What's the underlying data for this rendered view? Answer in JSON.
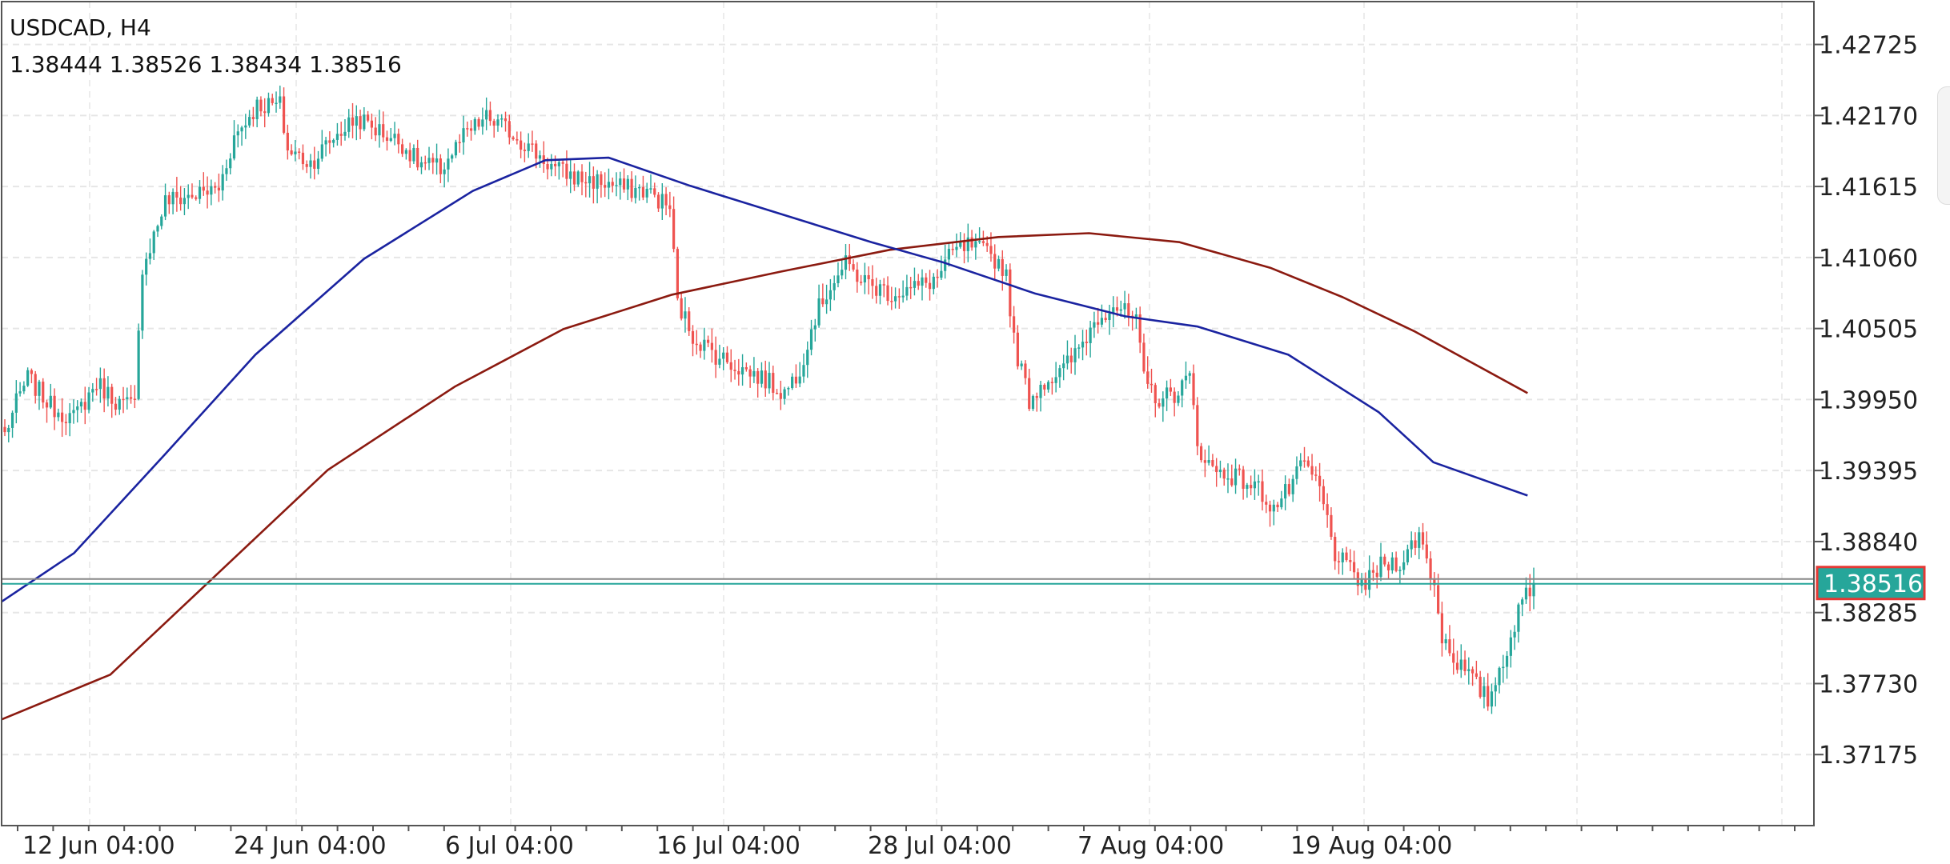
{
  "header": {
    "title": "USDCAD, H4",
    "ohlc": "1.38444 1.38526 1.38434 1.38516"
  },
  "chart_data": {
    "type": "candlestick",
    "symbol": "USDCAD",
    "timeframe": "H4",
    "y_ticks": [
      "1.42725",
      "1.42170",
      "1.41615",
      "1.41060",
      "1.40505",
      "1.39950",
      "1.39395",
      "1.38840",
      "1.38285",
      "1.37730",
      "1.37175"
    ],
    "x_ticks": [
      "12 Jun 04:00",
      "24 Jun 04:00",
      "6 Jul 04:00",
      "16 Jul 04:00",
      "28 Jul 04:00",
      "7 Aug 04:00",
      "19 Aug 04:00"
    ],
    "ylim": [
      1.3662,
      1.4306
    ],
    "last_price": 1.38516,
    "last_price_label": "1.38516",
    "grid": true,
    "colors": {
      "bull": "#26a69a",
      "bear": "#ef5350",
      "ma_fast": "#1a23a0",
      "ma_slow": "#8b1a10",
      "price_line": "#26a69a",
      "label_bg": "#26a69a",
      "label_border": "#e53935"
    },
    "close_path": [
      [
        0,
        1.3968
      ],
      [
        3,
        1.3992
      ],
      [
        6,
        1.4012
      ],
      [
        12,
        1.399
      ],
      [
        18,
        1.398
      ],
      [
        24,
        1.4008
      ],
      [
        30,
        1.3992
      ],
      [
        34,
        1.399
      ],
      [
        36,
        1.41
      ],
      [
        38,
        1.4115
      ],
      [
        42,
        1.415
      ],
      [
        50,
        1.4155
      ],
      [
        56,
        1.416
      ],
      [
        60,
        1.42
      ],
      [
        66,
        1.4225
      ],
      [
        72,
        1.4225
      ],
      [
        74,
        1.419
      ],
      [
        80,
        1.418
      ],
      [
        86,
        1.42
      ],
      [
        92,
        1.4215
      ],
      [
        98,
        1.4205
      ],
      [
        104,
        1.4195
      ],
      [
        108,
        1.418
      ],
      [
        114,
        1.4175
      ],
      [
        120,
        1.42
      ],
      [
        126,
        1.4215
      ],
      [
        132,
        1.4205
      ],
      [
        138,
        1.419
      ],
      [
        144,
        1.4175
      ],
      [
        150,
        1.4168
      ],
      [
        156,
        1.4165
      ],
      [
        162,
        1.416
      ],
      [
        168,
        1.4158
      ],
      [
        174,
        1.4145
      ],
      [
        176,
        1.407
      ],
      [
        180,
        1.4045
      ],
      [
        186,
        1.403
      ],
      [
        192,
        1.402
      ],
      [
        198,
        1.4012
      ],
      [
        204,
        1.4
      ],
      [
        208,
        1.402
      ],
      [
        212,
        1.406
      ],
      [
        216,
        1.4085
      ],
      [
        220,
        1.41
      ],
      [
        226,
        1.4085
      ],
      [
        232,
        1.4078
      ],
      [
        238,
        1.4082
      ],
      [
        244,
        1.409
      ],
      [
        248,
        1.411
      ],
      [
        252,
        1.4115
      ],
      [
        258,
        1.4108
      ],
      [
        262,
        1.4095
      ],
      [
        264,
        1.404
      ],
      [
        268,
        1.3995
      ],
      [
        272,
        1.401
      ],
      [
        276,
        1.4015
      ],
      [
        280,
        1.403
      ],
      [
        286,
        1.406
      ],
      [
        290,
        1.407
      ],
      [
        296,
        1.4055
      ],
      [
        298,
        1.401
      ],
      [
        302,
        1.3995
      ],
      [
        306,
        1.4
      ],
      [
        310,
        1.4012
      ],
      [
        312,
        1.396
      ],
      [
        316,
        1.394
      ],
      [
        322,
        1.3935
      ],
      [
        328,
        1.3925
      ],
      [
        332,
        1.391
      ],
      [
        336,
        1.3925
      ],
      [
        340,
        1.3945
      ],
      [
        344,
        1.3925
      ],
      [
        348,
        1.3875
      ],
      [
        352,
        1.386
      ],
      [
        356,
        1.385
      ],
      [
        360,
        1.3865
      ],
      [
        366,
        1.387
      ],
      [
        370,
        1.389
      ],
      [
        372,
        1.387
      ],
      [
        374,
        1.385
      ],
      [
        376,
        1.381
      ],
      [
        380,
        1.379
      ],
      [
        384,
        1.3775
      ],
      [
        388,
        1.376
      ],
      [
        390,
        1.3775
      ],
      [
        394,
        1.381
      ],
      [
        398,
        1.3845
      ],
      [
        400,
        1.38516
      ]
    ],
    "ma_fast": [
      [
        1.3837,
        0
      ],
      [
        1.3875,
        0.04
      ],
      [
        1.3952,
        0.09
      ],
      [
        1.403,
        0.14
      ],
      [
        1.4105,
        0.2
      ],
      [
        1.4158,
        0.26
      ],
      [
        1.4182,
        0.3
      ],
      [
        1.4184,
        0.335
      ],
      [
        1.4162,
        0.38
      ],
      [
        1.414,
        0.43
      ],
      [
        1.4118,
        0.48
      ],
      [
        1.4102,
        0.52
      ],
      [
        1.4078,
        0.57
      ],
      [
        1.406,
        0.62
      ],
      [
        1.4052,
        0.66
      ],
      [
        1.403,
        0.71
      ],
      [
        1.3985,
        0.76
      ],
      [
        1.3946,
        0.79
      ],
      [
        1.392,
        0.842
      ]
    ],
    "ma_slow": [
      [
        1.3745,
        0
      ],
      [
        1.378,
        0.06
      ],
      [
        1.386,
        0.12
      ],
      [
        1.394,
        0.18
      ],
      [
        1.4005,
        0.25
      ],
      [
        1.405,
        0.31
      ],
      [
        1.4077,
        0.37
      ],
      [
        1.4095,
        0.43
      ],
      [
        1.4112,
        0.49
      ],
      [
        1.4122,
        0.55
      ],
      [
        1.4125,
        0.6
      ],
      [
        1.4118,
        0.65
      ],
      [
        1.4098,
        0.7
      ],
      [
        1.4075,
        0.74
      ],
      [
        1.4048,
        0.78
      ],
      [
        1.4,
        0.842
      ]
    ]
  }
}
